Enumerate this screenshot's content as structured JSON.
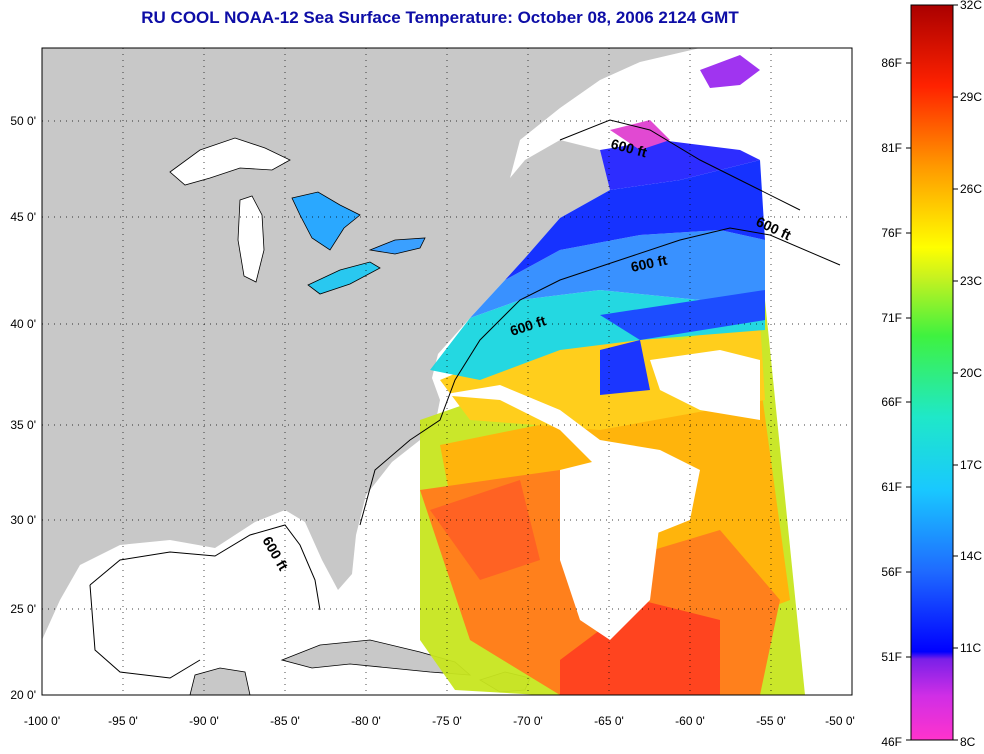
{
  "title": "RU COOL  NOAA-12  Sea Surface Temperature:  October 08, 2006 2124 GMT",
  "map": {
    "lon_ticks": [
      "-100 0'",
      "-95 0'",
      "-90 0'",
      "-85 0'",
      "-80 0'",
      "-75 0'",
      "-70 0'",
      "-65 0'",
      "-60 0'",
      "-55 0'",
      "-50 0'"
    ],
    "lat_ticks": [
      "50 0'",
      "45 0'",
      "40 0'",
      "35 0'",
      "30 0'",
      "25 0'",
      "20 0'"
    ],
    "contour_label": "600 ft",
    "land_color": "#c8c8c8",
    "cloud_color": "#ffffff"
  },
  "colorbar": {
    "fahrenheit": [
      "86F",
      "81F",
      "76F",
      "71F",
      "66F",
      "61F",
      "56F",
      "51F",
      "46F"
    ],
    "celsius": [
      "32C",
      "29C",
      "26C",
      "23C",
      "20C",
      "17C",
      "14C",
      "11C",
      "8C"
    ]
  }
}
